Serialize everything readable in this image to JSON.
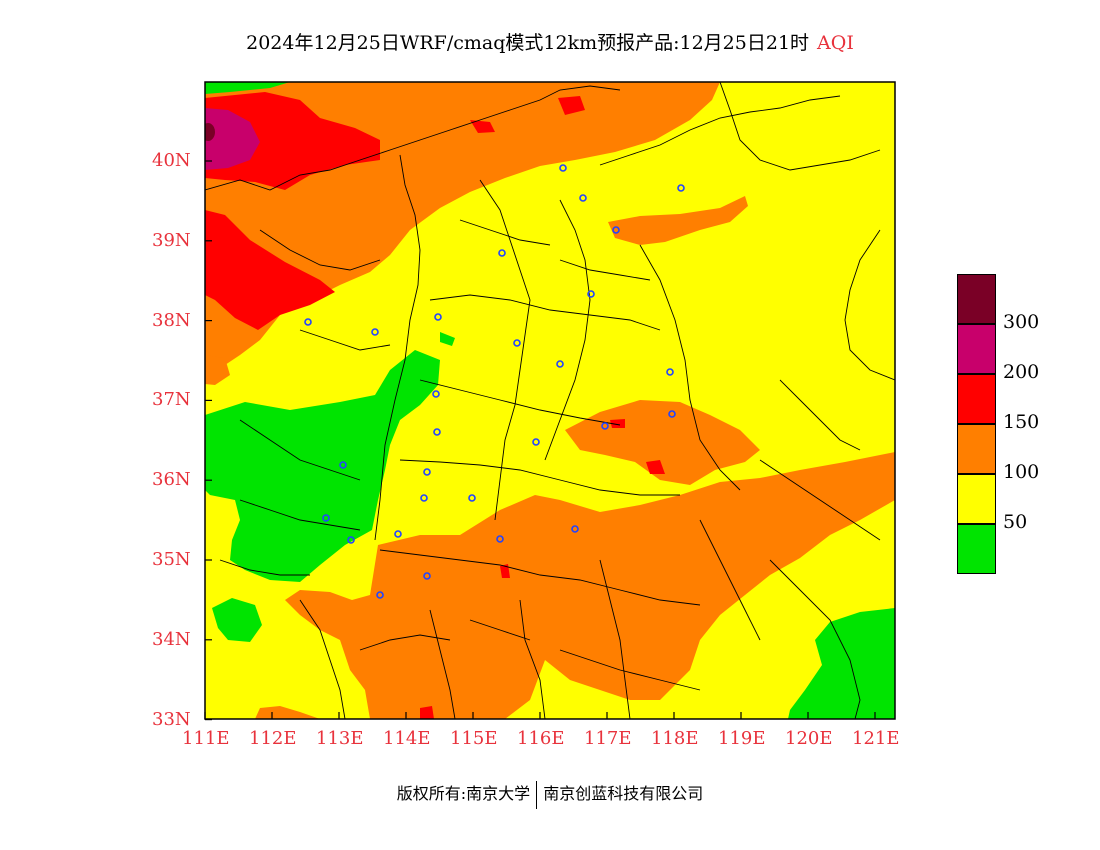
{
  "title": {
    "text": "2024年12月25日WRF/cmaq模式12km预报产品:12月25日21时",
    "variable": "AQI"
  },
  "axes": {
    "lon_ticks": [
      "111E",
      "112E",
      "113E",
      "114E",
      "115E",
      "116E",
      "117E",
      "118E",
      "119E",
      "120E",
      "121E"
    ],
    "lat_ticks": [
      "40N",
      "39N",
      "38N",
      "37N",
      "36N",
      "35N",
      "34N",
      "33N"
    ]
  },
  "legend": {
    "labels": [
      "300",
      "200",
      "150",
      "100",
      "50"
    ],
    "colors": [
      "#7a0026",
      "#c8006b",
      "#ff0000",
      "#ff7f00",
      "#ffff00",
      "#00e400"
    ]
  },
  "colors": {
    "good": "#00e400",
    "moderate": "#ffff00",
    "usg": "#ff7f00",
    "unhealthy": "#ff0000",
    "very_unhealthy": "#c8006b",
    "hazardous": "#7a0026",
    "station": "#2244ff",
    "axis_label": "#e8323c"
  },
  "footer": {
    "left": "版权所有:南京大学",
    "right": "南京创蓝科技有限公司"
  }
}
